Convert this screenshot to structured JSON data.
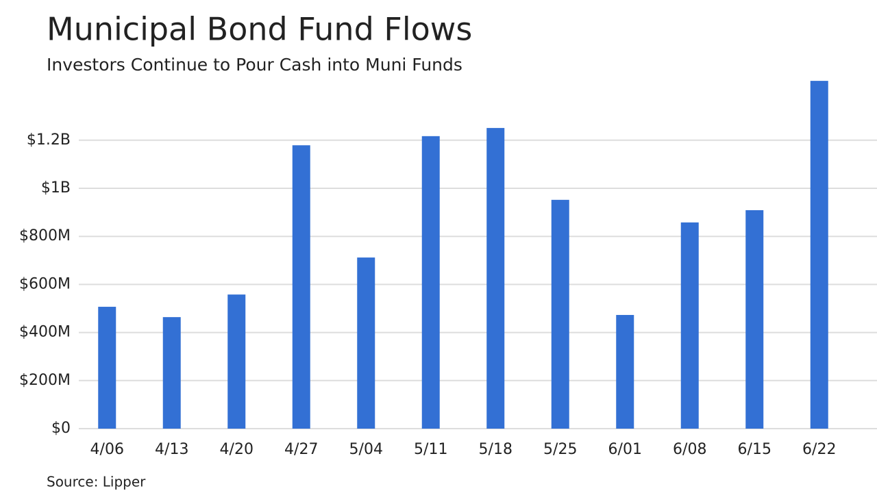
{
  "chart_data": {
    "type": "bar",
    "title": "Municipal Bond Fund Flows",
    "subtitle": "Investors Continue to Pour Cash into Muni Funds",
    "source": "Source: Lipper",
    "categories": [
      "4/06",
      "4/13",
      "4/20",
      "4/27",
      "5/04",
      "5/11",
      "5/18",
      "5/25",
      "6/01",
      "6/08",
      "6/15",
      "6/22"
    ],
    "values": [
      507000000,
      464000000,
      558000000,
      1179000000,
      712000000,
      1217000000,
      1251000000,
      952000000,
      473000000,
      858000000,
      909000000,
      1447000000
    ],
    "color": "#3370d4",
    "ylim": [
      0,
      1500000000
    ],
    "yticks": [
      {
        "value": 0,
        "label": "$0"
      },
      {
        "value": 200000000,
        "label": "$200M"
      },
      {
        "value": 400000000,
        "label": "$400M"
      },
      {
        "value": 600000000,
        "label": "$600M"
      },
      {
        "value": 800000000,
        "label": "$800M"
      },
      {
        "value": 1000000000,
        "label": "$1B"
      },
      {
        "value": 1200000000,
        "label": "$1.2B"
      }
    ],
    "grid": true
  }
}
